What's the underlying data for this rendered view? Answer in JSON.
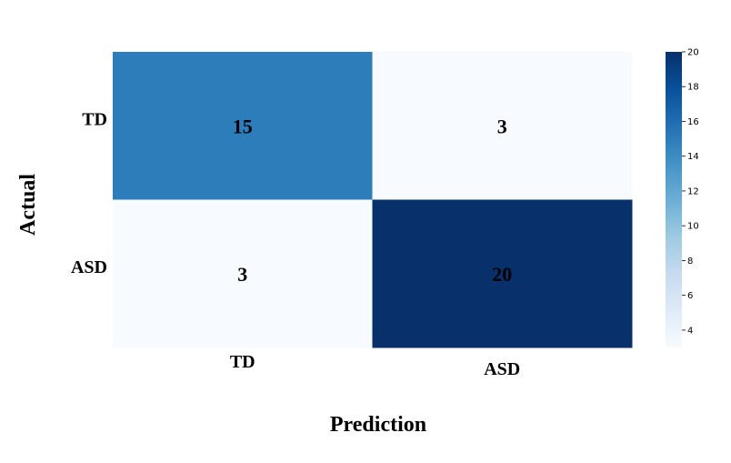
{
  "chart_data": {
    "type": "heatmap",
    "title": "",
    "xlabel": "Prediction",
    "ylabel": "Actual",
    "x_categories": [
      "TD",
      "ASD"
    ],
    "y_categories": [
      "TD",
      "ASD"
    ],
    "values": [
      [
        15,
        3
      ],
      [
        3,
        20
      ]
    ],
    "colorbar": {
      "min": 3,
      "max": 20,
      "ticks": [
        4,
        6,
        8,
        10,
        12,
        14,
        16,
        18,
        20
      ]
    },
    "colormap": "Blues",
    "colors": {
      "low": "#f7fbff",
      "high": "#08306b"
    },
    "grid": false
  }
}
